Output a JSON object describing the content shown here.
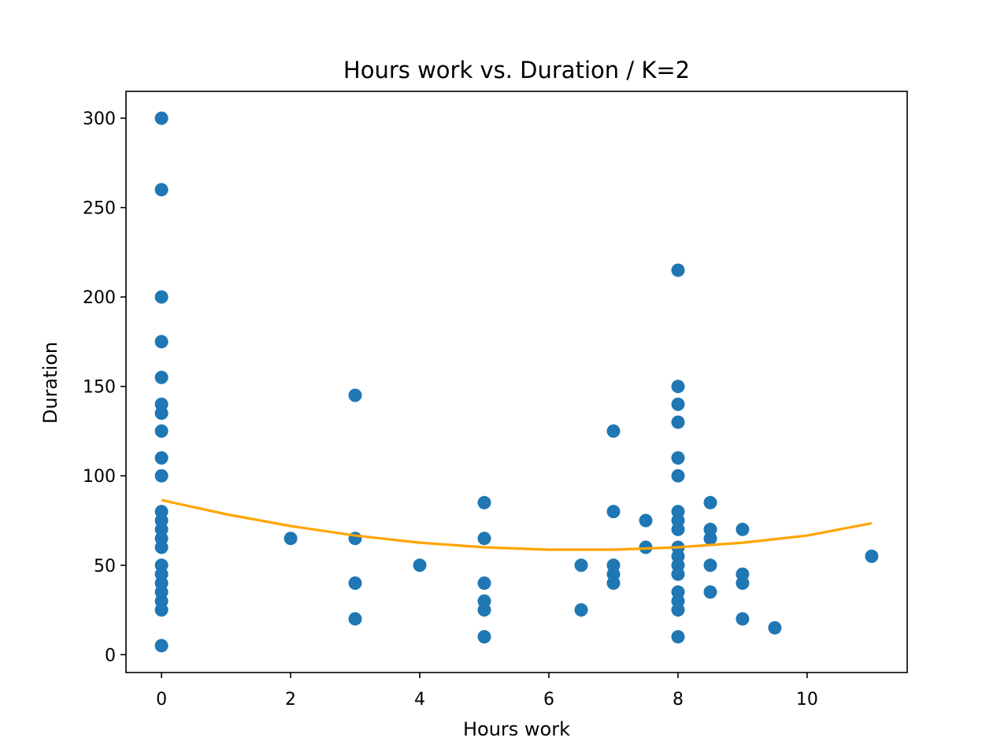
{
  "chart_data": {
    "type": "scatter",
    "title": "Hours work vs. Duration / K=2",
    "xlabel": "Hours work",
    "ylabel": "Duration",
    "xlim": [
      -0.55,
      11.55
    ],
    "ylim": [
      -10,
      315
    ],
    "xticks": [
      0,
      2,
      4,
      6,
      8,
      10
    ],
    "yticks": [
      0,
      50,
      100,
      150,
      200,
      250,
      300
    ],
    "grid": false,
    "legend": "none",
    "colors": {
      "points": "#1f77b4",
      "fit": "#ffa500",
      "frame": "#000000"
    },
    "series": [
      {
        "type": "scatter",
        "points": [
          [
            0,
            300
          ],
          [
            0,
            260
          ],
          [
            0,
            200
          ],
          [
            0,
            175
          ],
          [
            0,
            155
          ],
          [
            0,
            140
          ],
          [
            0,
            135
          ],
          [
            0,
            125
          ],
          [
            0,
            110
          ],
          [
            0,
            100
          ],
          [
            0,
            80
          ],
          [
            0,
            75
          ],
          [
            0,
            70
          ],
          [
            0,
            65
          ],
          [
            0,
            60
          ],
          [
            0,
            50
          ],
          [
            0,
            45
          ],
          [
            0,
            40
          ],
          [
            0,
            35
          ],
          [
            0,
            30
          ],
          [
            0,
            25
          ],
          [
            0,
            5
          ],
          [
            2,
            65
          ],
          [
            3,
            145
          ],
          [
            3,
            65
          ],
          [
            3,
            40
          ],
          [
            3,
            20
          ],
          [
            4,
            50
          ],
          [
            5,
            85
          ],
          [
            5,
            65
          ],
          [
            5,
            40
          ],
          [
            5,
            30
          ],
          [
            5,
            25
          ],
          [
            5,
            10
          ],
          [
            6.5,
            50
          ],
          [
            6.5,
            25
          ],
          [
            7,
            125
          ],
          [
            7,
            80
          ],
          [
            7,
            50
          ],
          [
            7,
            45
          ],
          [
            7,
            40
          ],
          [
            7.5,
            75
          ],
          [
            7.5,
            60
          ],
          [
            8,
            215
          ],
          [
            8,
            150
          ],
          [
            8,
            140
          ],
          [
            8,
            130
          ],
          [
            8,
            110
          ],
          [
            8,
            100
          ],
          [
            8,
            80
          ],
          [
            8,
            75
          ],
          [
            8,
            70
          ],
          [
            8,
            60
          ],
          [
            8,
            55
          ],
          [
            8,
            50
          ],
          [
            8,
            45
          ],
          [
            8,
            35
          ],
          [
            8,
            30
          ],
          [
            8,
            25
          ],
          [
            8,
            10
          ],
          [
            8.5,
            85
          ],
          [
            8.5,
            70
          ],
          [
            8.5,
            65
          ],
          [
            8.5,
            50
          ],
          [
            8.5,
            35
          ],
          [
            9,
            70
          ],
          [
            9,
            45
          ],
          [
            9,
            40
          ],
          [
            9,
            20
          ],
          [
            9.5,
            15
          ],
          [
            11,
            55
          ]
        ]
      },
      {
        "type": "line",
        "x": [
          0,
          1,
          2,
          3,
          4,
          5,
          6,
          7,
          8,
          9,
          10,
          11
        ],
        "y": [
          86.4,
          78.5,
          71.9,
          66.6,
          62.6,
          60.0,
          58.7,
          58.7,
          60.0,
          62.6,
          66.6,
          73.5
        ]
      }
    ]
  }
}
